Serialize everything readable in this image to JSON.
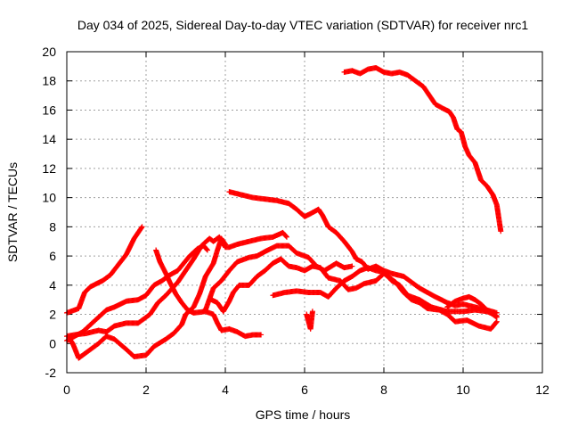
{
  "chart_data": {
    "type": "scatter",
    "title": "Day 034 of 2025, Sidereal Day-to-day VTEC variation (SDTVAR) for receiver nrc1",
    "xlabel": "GPS time / hours",
    "ylabel": "SDTVAR / TECUs",
    "xlim": [
      0,
      12
    ],
    "ylim": [
      -2,
      20
    ],
    "xticks": [
      0,
      2,
      4,
      6,
      8,
      10,
      12
    ],
    "yticks": [
      -2,
      0,
      2,
      4,
      6,
      8,
      10,
      12,
      14,
      16,
      18,
      20
    ],
    "grid": true,
    "marker": "+",
    "color": "#ff0000",
    "series": [
      {
        "name": "track-1",
        "points": [
          [
            0,
            2.1
          ],
          [
            0.3,
            2.4
          ],
          [
            0.45,
            3.5
          ],
          [
            0.6,
            3.9
          ],
          [
            0.9,
            4.3
          ],
          [
            1.1,
            4.7
          ],
          [
            1.3,
            5.4
          ],
          [
            1.5,
            6.1
          ],
          [
            1.7,
            7.2
          ],
          [
            1.9,
            8.0
          ]
        ]
      },
      {
        "name": "track-2",
        "points": [
          [
            0,
            0.2
          ],
          [
            0.2,
            0.5
          ],
          [
            0.4,
            0.8
          ],
          [
            0.6,
            1.3
          ],
          [
            0.8,
            1.8
          ],
          [
            1.0,
            2.3
          ],
          [
            1.2,
            2.5
          ],
          [
            1.5,
            2.9
          ],
          [
            1.8,
            3.0
          ],
          [
            2.0,
            3.3
          ],
          [
            2.2,
            4.0
          ],
          [
            2.4,
            4.3
          ],
          [
            2.6,
            4.7
          ],
          [
            2.8,
            5.0
          ],
          [
            2.95,
            5.5
          ],
          [
            3.1,
            6.0
          ],
          [
            3.3,
            6.5
          ],
          [
            3.45,
            6.7
          ],
          [
            3.55,
            6.4
          ]
        ]
      },
      {
        "name": "track-3",
        "points": [
          [
            0,
            0.5
          ],
          [
            0.2,
            0.6
          ],
          [
            0.5,
            0.7
          ],
          [
            0.8,
            0.9
          ],
          [
            1.0,
            0.8
          ],
          [
            1.2,
            1.2
          ],
          [
            1.5,
            1.4
          ],
          [
            1.8,
            1.4
          ],
          [
            2.1,
            2.0
          ],
          [
            2.3,
            2.8
          ],
          [
            2.5,
            3.3
          ],
          [
            2.8,
            4.2
          ],
          [
            3.0,
            5.0
          ],
          [
            3.2,
            5.8
          ],
          [
            3.4,
            6.7
          ],
          [
            3.6,
            7.2
          ],
          [
            3.7,
            7.0
          ],
          [
            3.85,
            7.3
          ],
          [
            4.0,
            6.6
          ],
          [
            4.1,
            6.6
          ],
          [
            4.3,
            6.8
          ],
          [
            4.6,
            7.0
          ],
          [
            4.9,
            7.2
          ],
          [
            5.2,
            7.3
          ],
          [
            5.45,
            7.6
          ],
          [
            5.55,
            7.3
          ]
        ]
      },
      {
        "name": "track-4",
        "points": [
          [
            0.05,
            0.4
          ],
          [
            0.15,
            0.0
          ],
          [
            0.3,
            -1.0
          ],
          [
            0.5,
            -0.6
          ],
          [
            0.8,
            0.0
          ],
          [
            1.0,
            0.5
          ],
          [
            1.2,
            0.3
          ],
          [
            1.5,
            -0.4
          ],
          [
            1.7,
            -0.9
          ],
          [
            2.0,
            -0.8
          ],
          [
            2.2,
            -0.2
          ],
          [
            2.5,
            0.3
          ],
          [
            2.7,
            0.7
          ],
          [
            2.9,
            1.3
          ],
          [
            3.0,
            2.0
          ],
          [
            3.2,
            2.5
          ],
          [
            3.35,
            3.4
          ],
          [
            3.5,
            4.6
          ],
          [
            3.7,
            5.5
          ],
          [
            3.8,
            6.4
          ],
          [
            3.9,
            7.2
          ],
          [
            4.0,
            6.8
          ]
        ]
      },
      {
        "name": "track-5",
        "points": [
          [
            2.25,
            6.4
          ],
          [
            2.35,
            5.6
          ],
          [
            2.5,
            4.8
          ],
          [
            2.6,
            4.2
          ],
          [
            2.75,
            3.4
          ],
          [
            2.9,
            2.8
          ],
          [
            3.05,
            2.3
          ],
          [
            3.2,
            2.1
          ],
          [
            3.5,
            2.2
          ],
          [
            3.7,
            2.0
          ],
          [
            3.8,
            1.4
          ],
          [
            3.9,
            0.9
          ],
          [
            4.1,
            1.0
          ],
          [
            4.3,
            0.8
          ],
          [
            4.5,
            0.5
          ],
          [
            4.7,
            0.6
          ],
          [
            4.9,
            0.6
          ]
        ]
      },
      {
        "name": "track-6",
        "points": [
          [
            3.5,
            2.3
          ],
          [
            3.7,
            3.8
          ],
          [
            3.9,
            4.3
          ],
          [
            4.1,
            5.0
          ],
          [
            4.3,
            5.6
          ],
          [
            4.6,
            5.9
          ],
          [
            4.8,
            6.0
          ],
          [
            5.0,
            6.3
          ],
          [
            5.3,
            6.7
          ],
          [
            5.6,
            6.7
          ],
          [
            5.8,
            6.2
          ],
          [
            6.1,
            5.9
          ],
          [
            6.3,
            5.3
          ],
          [
            6.5,
            5.0
          ],
          [
            6.8,
            5.5
          ],
          [
            7.0,
            5.2
          ],
          [
            7.2,
            5.3
          ]
        ]
      },
      {
        "name": "track-7",
        "points": [
          [
            3.65,
            3.0
          ],
          [
            3.8,
            2.8
          ],
          [
            3.95,
            2.2
          ],
          [
            4.1,
            2.9
          ],
          [
            4.2,
            3.5
          ],
          [
            4.35,
            4.0
          ],
          [
            4.6,
            4.0
          ],
          [
            4.8,
            4.6
          ],
          [
            5.0,
            5.0
          ],
          [
            5.2,
            5.5
          ],
          [
            5.4,
            5.8
          ],
          [
            5.6,
            5.3
          ],
          [
            5.8,
            5.2
          ],
          [
            6.0,
            5.0
          ],
          [
            6.2,
            5.3
          ],
          [
            6.4,
            5.2
          ],
          [
            6.6,
            4.5
          ],
          [
            6.9,
            4.3
          ],
          [
            7.1,
            3.7
          ],
          [
            7.3,
            3.8
          ],
          [
            7.5,
            4.1
          ],
          [
            7.8,
            4.3
          ],
          [
            8.0,
            4.8
          ],
          [
            8.3,
            4.2
          ],
          [
            8.5,
            3.5
          ],
          [
            8.7,
            3.0
          ],
          [
            8.9,
            2.8
          ],
          [
            9.1,
            2.4
          ],
          [
            9.4,
            2.3
          ],
          [
            9.6,
            2.0
          ],
          [
            9.8,
            1.5
          ],
          [
            10.1,
            1.6
          ],
          [
            10.4,
            1.2
          ],
          [
            10.7,
            1.0
          ],
          [
            10.85,
            1.5
          ]
        ]
      },
      {
        "name": "track-8",
        "points": [
          [
            5.2,
            3.3
          ],
          [
            5.5,
            3.5
          ],
          [
            5.8,
            3.6
          ],
          [
            6.1,
            3.5
          ],
          [
            6.4,
            3.5
          ],
          [
            6.6,
            3.2
          ],
          [
            6.8,
            3.8
          ],
          [
            7.0,
            4.3
          ],
          [
            7.2,
            4.6
          ],
          [
            7.4,
            5.0
          ],
          [
            7.6,
            5.2
          ],
          [
            7.8,
            5.0
          ],
          [
            8.0,
            4.9
          ],
          [
            8.2,
            4.3
          ],
          [
            8.4,
            4.0
          ],
          [
            8.6,
            3.3
          ],
          [
            8.9,
            3.0
          ],
          [
            9.2,
            2.5
          ],
          [
            9.6,
            2.2
          ],
          [
            10.0,
            2.2
          ],
          [
            10.3,
            2.3
          ],
          [
            10.6,
            2.2
          ],
          [
            10.85,
            1.9
          ]
        ]
      },
      {
        "name": "track-9",
        "points": [
          [
            4.1,
            10.4
          ],
          [
            4.4,
            10.2
          ],
          [
            4.7,
            10.0
          ],
          [
            5.0,
            9.9
          ],
          [
            5.3,
            9.8
          ],
          [
            5.6,
            9.6
          ],
          [
            5.8,
            9.2
          ],
          [
            6.0,
            8.7
          ],
          [
            6.15,
            8.9
          ],
          [
            6.35,
            9.2
          ],
          [
            6.45,
            8.8
          ],
          [
            6.6,
            8.0
          ],
          [
            6.8,
            7.6
          ],
          [
            7.0,
            7.0
          ],
          [
            7.2,
            6.3
          ],
          [
            7.3,
            5.8
          ],
          [
            7.45,
            5.6
          ],
          [
            7.6,
            5.1
          ],
          [
            7.8,
            5.3
          ],
          [
            8.0,
            5.0
          ],
          [
            8.2,
            4.8
          ],
          [
            8.5,
            4.6
          ],
          [
            8.7,
            4.2
          ],
          [
            8.9,
            3.8
          ],
          [
            9.1,
            3.5
          ],
          [
            9.3,
            3.2
          ],
          [
            9.6,
            2.8
          ],
          [
            9.8,
            2.6
          ],
          [
            10.0,
            2.7
          ],
          [
            10.3,
            2.5
          ],
          [
            10.6,
            2.3
          ],
          [
            10.85,
            2.1
          ]
        ]
      },
      {
        "name": "track-10",
        "points": [
          [
            9.6,
            2.5
          ],
          [
            9.8,
            2.9
          ],
          [
            10.0,
            3.1
          ],
          [
            10.15,
            3.2
          ],
          [
            10.3,
            3.0
          ],
          [
            10.45,
            2.7
          ],
          [
            10.6,
            2.3
          ],
          [
            10.75,
            2.0
          ],
          [
            10.85,
            1.8
          ]
        ]
      },
      {
        "name": "track-11",
        "points": [
          [
            6.05,
            2.0
          ],
          [
            6.1,
            1.5
          ],
          [
            6.15,
            1.0
          ],
          [
            6.2,
            2.2
          ]
        ]
      },
      {
        "name": "track-12",
        "points": [
          [
            7.0,
            18.6
          ],
          [
            7.2,
            18.7
          ],
          [
            7.4,
            18.5
          ],
          [
            7.6,
            18.8
          ],
          [
            7.8,
            18.9
          ],
          [
            8.0,
            18.6
          ],
          [
            8.2,
            18.5
          ],
          [
            8.4,
            18.6
          ],
          [
            8.6,
            18.4
          ],
          [
            8.8,
            18.0
          ],
          [
            9.0,
            17.6
          ],
          [
            9.15,
            17.0
          ],
          [
            9.3,
            16.4
          ],
          [
            9.5,
            16.1
          ],
          [
            9.65,
            15.9
          ],
          [
            9.75,
            15.5
          ],
          [
            9.85,
            14.7
          ],
          [
            9.95,
            14.5
          ],
          [
            10.05,
            13.5
          ],
          [
            10.15,
            12.9
          ],
          [
            10.3,
            12.4
          ],
          [
            10.45,
            11.2
          ],
          [
            10.6,
            10.8
          ],
          [
            10.75,
            10.2
          ],
          [
            10.85,
            9.5
          ],
          [
            10.9,
            8.6
          ],
          [
            10.95,
            7.7
          ]
        ]
      }
    ]
  }
}
